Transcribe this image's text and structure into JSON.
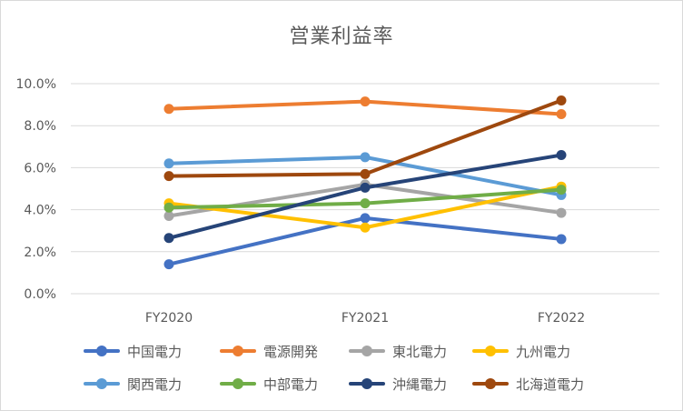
{
  "chart_data": {
    "type": "line",
    "title": "営業利益率",
    "categories": [
      "FY2020",
      "FY2021",
      "FY2022"
    ],
    "y_ticks": [
      "0.0%",
      "2.0%",
      "4.0%",
      "6.0%",
      "8.0%",
      "10.0%"
    ],
    "ylim": [
      0,
      10
    ],
    "y_unit": "%",
    "grid": true,
    "legend_position": "bottom",
    "series": [
      {
        "name": "中国電力",
        "color": "#4472C4",
        "values": [
          1.4,
          3.6,
          2.6
        ]
      },
      {
        "name": "電源開発",
        "color": "#ED7D31",
        "values": [
          8.8,
          9.15,
          8.55
        ]
      },
      {
        "name": "東北電力",
        "color": "#A5A5A5",
        "values": [
          3.7,
          5.2,
          3.85
        ]
      },
      {
        "name": "九州電力",
        "color": "#FFC000",
        "values": [
          4.3,
          3.15,
          5.1
        ]
      },
      {
        "name": "関西電力",
        "color": "#5B9BD5",
        "values": [
          6.2,
          6.5,
          4.7
        ]
      },
      {
        "name": "中部電力",
        "color": "#70AD47",
        "values": [
          4.1,
          4.3,
          4.95
        ]
      },
      {
        "name": "沖縄電力",
        "color": "#264478",
        "values": [
          2.65,
          5.05,
          6.6
        ]
      },
      {
        "name": "北海道電力",
        "color": "#9E480E",
        "values": [
          5.6,
          5.7,
          9.2
        ]
      }
    ]
  }
}
